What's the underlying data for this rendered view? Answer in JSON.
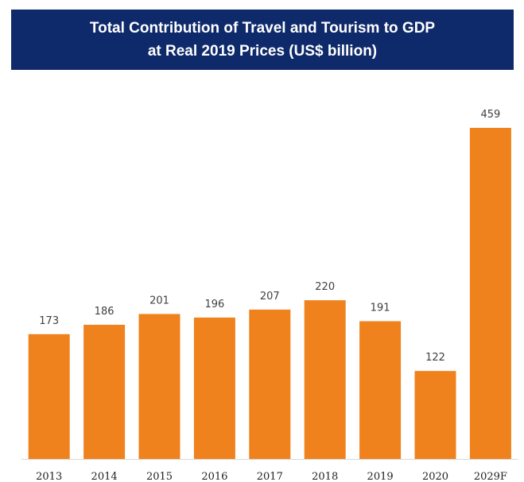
{
  "title": {
    "line1": "Total Contribution of Travel and Tourism to GDP",
    "line2": "at Real 2019 Prices (US$ billion)"
  },
  "colors": {
    "banner": "#0f2a6b",
    "bar": "#f0821e",
    "baseline": "#d9d9d9"
  },
  "chart_data": {
    "type": "bar",
    "title": "Total Contribution of Travel and Tourism to GDP at Real 2019 Prices (US$ billion)",
    "categories": [
      "2013",
      "2014",
      "2015",
      "2016",
      "2017",
      "2018",
      "2019",
      "2020",
      "2029F"
    ],
    "values": [
      173,
      186,
      201,
      196,
      207,
      220,
      191,
      122,
      459
    ],
    "data_labels": [
      "173",
      "186",
      "201",
      "196",
      "207",
      "220",
      "191",
      "122",
      "459"
    ],
    "ylim": [
      0,
      459
    ],
    "grid": false,
    "legend": "none"
  }
}
